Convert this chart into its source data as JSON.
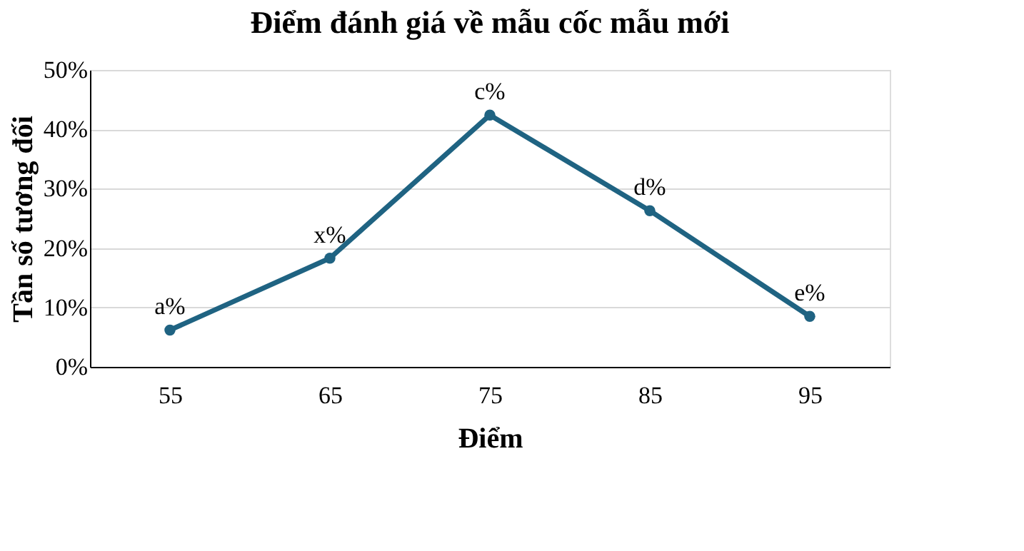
{
  "chart_data": {
    "type": "line",
    "title": "Điểm đánh giá về mẫu cốc mẫu mới",
    "xlabel": "Điểm",
    "ylabel": "Tần số tương đối",
    "categories": [
      "55",
      "65",
      "75",
      "85",
      "95"
    ],
    "series": [
      {
        "color": "#1f6382",
        "values": [
          6.2,
          18.3,
          42.4,
          26.3,
          8.5
        ],
        "value_labels": [
          "a%",
          "x%",
          "c%",
          "d%",
          "e%"
        ]
      }
    ],
    "ylim": [
      0,
      50
    ],
    "yticks": [
      {
        "value": 0,
        "label": "0%"
      },
      {
        "value": 10,
        "label": "10%"
      },
      {
        "value": 20,
        "label": "20%"
      },
      {
        "value": 30,
        "label": "30%"
      },
      {
        "value": 40,
        "label": "40%"
      },
      {
        "value": 50,
        "label": "50%"
      }
    ],
    "grid": "y",
    "marker": "circle",
    "line_style": "solid"
  }
}
